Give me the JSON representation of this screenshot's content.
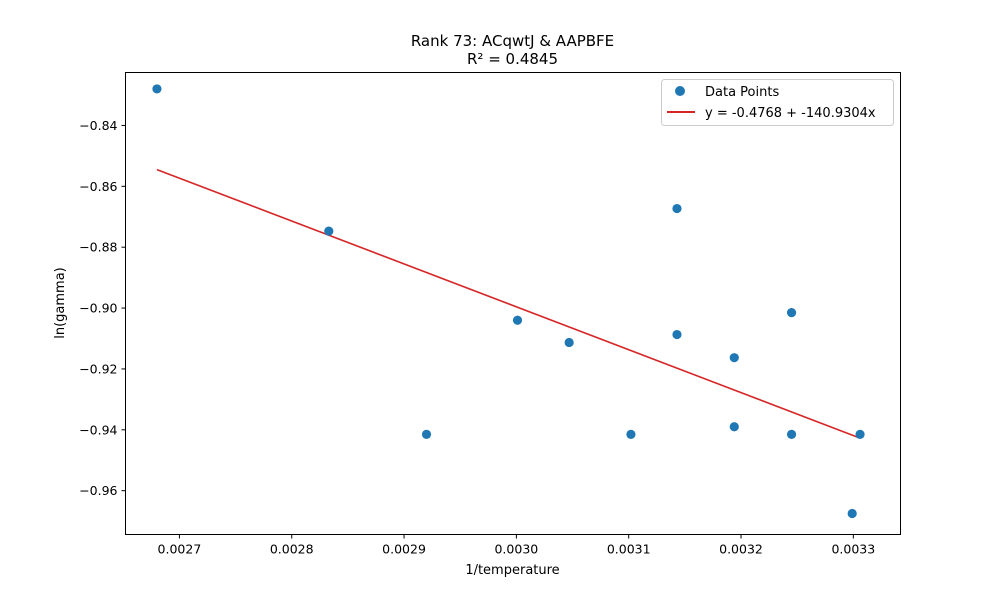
{
  "chart_data": {
    "type": "scatter",
    "title": "Rank 73: ACqwtJ & AAPBFE",
    "subtitle": "R² = 0.4845",
    "xlabel": "1/temperature",
    "ylabel": "ln(gamma)",
    "xlim": [
      0.002652,
      0.003342
    ],
    "ylim": [
      -0.9744,
      -0.8226
    ],
    "xticks": [
      0.0027,
      0.0028,
      0.0029,
      0.003,
      0.0031,
      0.0032,
      0.0033
    ],
    "xtick_labels": [
      "0.0027",
      "0.0028",
      "0.0029",
      "0.0030",
      "0.0031",
      "0.0032",
      "0.0033"
    ],
    "yticks": [
      -0.96,
      -0.94,
      -0.92,
      -0.9,
      -0.88,
      -0.86,
      -0.84
    ],
    "ytick_labels": [
      "−0.96",
      "−0.94",
      "−0.92",
      "−0.90",
      "−0.88",
      "−0.86",
      "−0.84"
    ],
    "grid": false,
    "legend_position": "top-right",
    "series": [
      {
        "name": "Data Points",
        "kind": "scatter",
        "color": "#1f77b4",
        "x": [
          0.00268,
          0.002833,
          0.00292,
          0.003001,
          0.003047,
          0.003102,
          0.003143,
          0.003143,
          0.003194,
          0.003194,
          0.003245,
          0.003245,
          0.003299,
          0.003306
        ],
        "y": [
          -0.828,
          -0.8747,
          -0.9415,
          -0.904,
          -0.9113,
          -0.9415,
          -0.8673,
          -0.9087,
          -0.9163,
          -0.939,
          -0.9015,
          -0.9415,
          -0.9675,
          -0.9415
        ]
      },
      {
        "name": "y = -0.4768 + -140.9304x",
        "kind": "line",
        "color": "#d62728",
        "intercept": -0.4768,
        "slope": -140.9304,
        "x_range": [
          0.00268,
          0.003306
        ]
      }
    ]
  }
}
